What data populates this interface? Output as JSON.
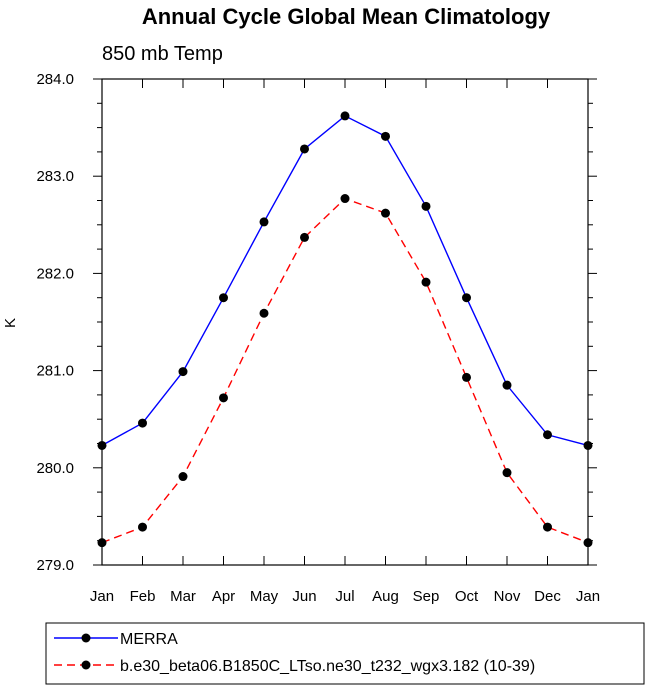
{
  "chart_data": {
    "type": "line",
    "title": "Annual Cycle Global Mean Climatology",
    "subtitle": "850 mb Temp",
    "xlabel": "",
    "ylabel": "K",
    "categories": [
      "Jan",
      "Feb",
      "Mar",
      "Apr",
      "May",
      "Jun",
      "Jul",
      "Aug",
      "Sep",
      "Oct",
      "Nov",
      "Dec",
      "Jan"
    ],
    "ylim": [
      279.0,
      284.0
    ],
    "yticks": [
      "279.0",
      "280.0",
      "281.0",
      "282.0",
      "283.0",
      "284.0"
    ],
    "grid": false,
    "legend_position": "bottom",
    "series": [
      {
        "name": "MERRA",
        "color": "#0000ff",
        "dash": "solid",
        "values": [
          280.23,
          280.46,
          280.99,
          281.75,
          282.53,
          283.28,
          283.62,
          283.41,
          282.69,
          281.75,
          280.85,
          280.34,
          280.23
        ]
      },
      {
        "name": "b.e30_beta06.B1850C_LTso.ne30_t232_wgx3.182 (10-39)",
        "color": "#ff0000",
        "dash": "dashed",
        "values": [
          279.23,
          279.39,
          279.91,
          280.72,
          281.59,
          282.37,
          282.77,
          282.62,
          281.91,
          280.93,
          279.95,
          279.39,
          279.23
        ]
      }
    ]
  }
}
